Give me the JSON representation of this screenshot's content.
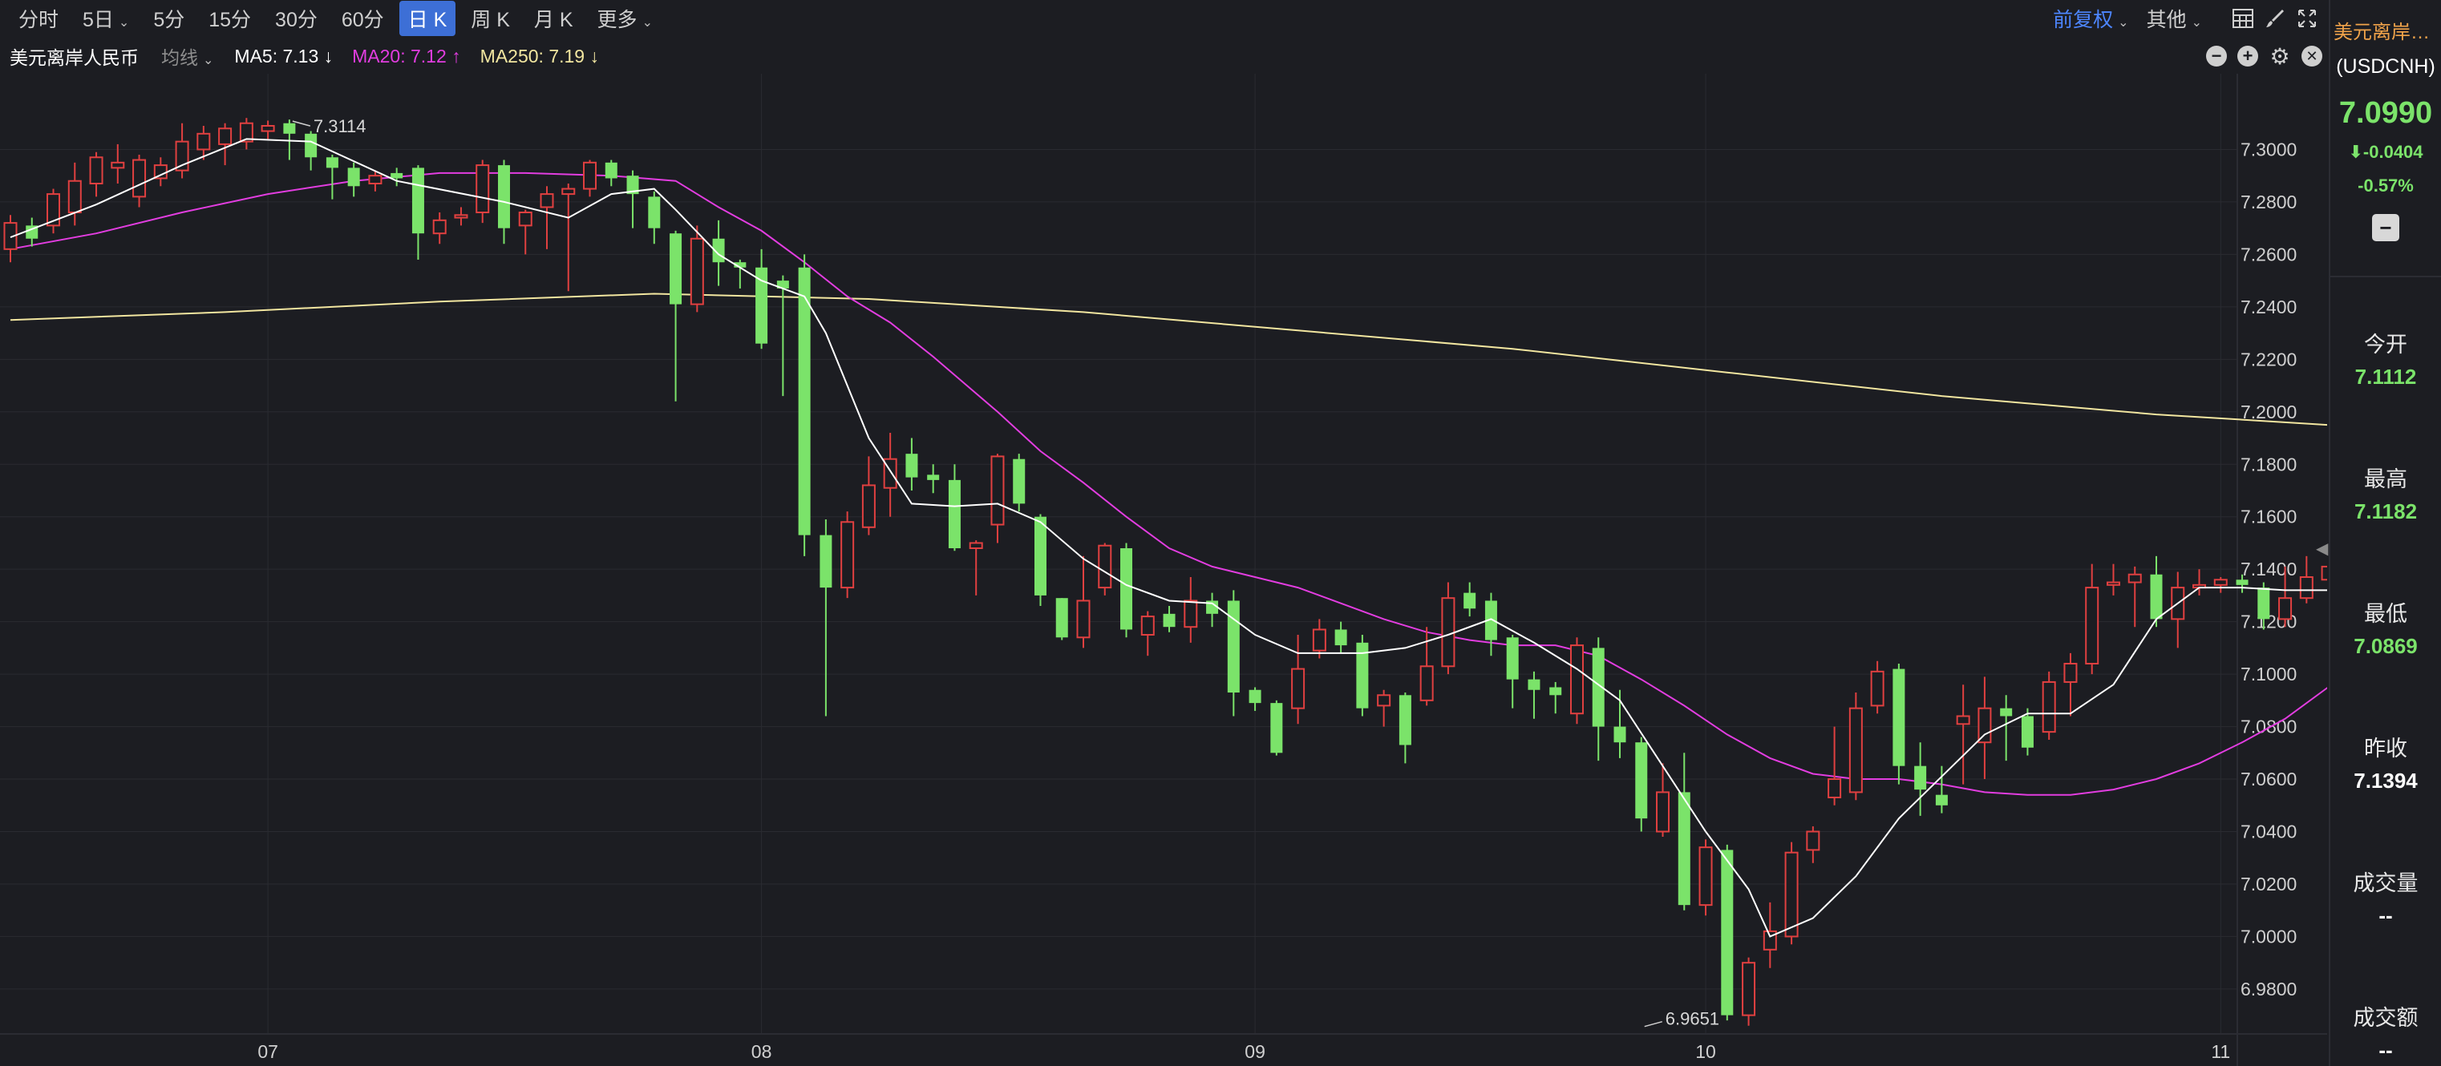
{
  "periods": [
    {
      "label": "分时",
      "active": false
    },
    {
      "label": "5日",
      "active": false,
      "caret": true
    },
    {
      "label": "5分",
      "active": false
    },
    {
      "label": "15分",
      "active": false
    },
    {
      "label": "30分",
      "active": false
    },
    {
      "label": "60分",
      "active": false
    },
    {
      "label": "日 K",
      "active": true
    },
    {
      "label": "周 K",
      "active": false
    },
    {
      "label": "月 K",
      "active": false
    },
    {
      "label": "更多",
      "active": false,
      "caret": true
    }
  ],
  "toolbar": {
    "fq_label": "前复权",
    "other_label": "其他"
  },
  "indicator": {
    "title": "美元离岸人民币",
    "ma_type": "均线",
    "ma5": "MA5: 7.13 ↓",
    "ma20": "MA20: 7.12 ↑",
    "ma250": "MA250: 7.19 ↓"
  },
  "colors": {
    "up": "#e04040",
    "down": "#7be36a",
    "ma5": "#ffffff",
    "ma20": "#e23de0",
    "ma250": "#f2e6a0",
    "grid": "#2a2b31",
    "axis_text": "#d0d0d0"
  },
  "chart_data": {
    "type": "candlestick",
    "ylim": [
      6.965,
      7.3145
    ],
    "yticks": [
      "7.3000",
      "7.2800",
      "7.2600",
      "7.2400",
      "7.2200",
      "7.2000",
      "7.1800",
      "7.1600",
      "7.1400",
      "7.1200",
      "7.1000",
      "7.0800",
      "7.0600",
      "7.0400",
      "7.0200",
      "7.0000",
      "6.9800"
    ],
    "xticks": [
      {
        "label": "07",
        "index": 12
      },
      {
        "label": "08",
        "index": 35
      },
      {
        "label": "09",
        "index": 58
      },
      {
        "label": "10",
        "index": 79
      },
      {
        "label": "11",
        "index": 103
      }
    ],
    "annotations": [
      {
        "label": "7.3114",
        "index": 13,
        "value": 7.3114,
        "side": "right"
      },
      {
        "label": "6.9651",
        "index": 76,
        "value": 6.9651,
        "side": "right"
      }
    ],
    "candles": [
      [
        7.262,
        7.272,
        7.257,
        7.275
      ],
      [
        7.271,
        7.266,
        7.263,
        7.274
      ],
      [
        7.271,
        7.283,
        7.268,
        7.285
      ],
      [
        7.276,
        7.288,
        7.271,
        7.295
      ],
      [
        7.287,
        7.297,
        7.282,
        7.299
      ],
      [
        7.293,
        7.295,
        7.287,
        7.302
      ],
      [
        7.282,
        7.296,
        7.278,
        7.298
      ],
      [
        7.289,
        7.294,
        7.286,
        7.297
      ],
      [
        7.292,
        7.303,
        7.289,
        7.31
      ],
      [
        7.3,
        7.306,
        7.296,
        7.309
      ],
      [
        7.302,
        7.308,
        7.294,
        7.31
      ],
      [
        7.303,
        7.31,
        7.3,
        7.312
      ],
      [
        7.307,
        7.309,
        7.304,
        7.311
      ],
      [
        7.31,
        7.306,
        7.296,
        7.3114
      ],
      [
        7.306,
        7.297,
        7.292,
        7.307
      ],
      [
        7.297,
        7.293,
        7.281,
        7.298
      ],
      [
        7.293,
        7.286,
        7.282,
        7.295
      ],
      [
        7.287,
        7.29,
        7.284,
        7.292
      ],
      [
        7.291,
        7.289,
        7.286,
        7.293
      ],
      [
        7.293,
        7.268,
        7.258,
        7.294
      ],
      [
        7.268,
        7.273,
        7.264,
        7.276
      ],
      [
        7.274,
        7.275,
        7.271,
        7.278
      ],
      [
        7.276,
        7.294,
        7.272,
        7.296
      ],
      [
        7.294,
        7.27,
        7.264,
        7.296
      ],
      [
        7.271,
        7.276,
        7.26,
        7.277
      ],
      [
        7.278,
        7.283,
        7.262,
        7.286
      ],
      [
        7.283,
        7.285,
        7.246,
        7.287
      ],
      [
        7.285,
        7.295,
        7.282,
        7.296
      ],
      [
        7.295,
        7.289,
        7.286,
        7.296
      ],
      [
        7.29,
        7.283,
        7.27,
        7.292
      ],
      [
        7.282,
        7.27,
        7.264,
        7.284
      ],
      [
        7.268,
        7.241,
        7.204,
        7.269
      ],
      [
        7.241,
        7.266,
        7.238,
        7.271
      ],
      [
        7.266,
        7.257,
        7.248,
        7.273
      ],
      [
        7.257,
        7.255,
        7.247,
        7.258
      ],
      [
        7.255,
        7.226,
        7.224,
        7.262
      ],
      [
        7.25,
        7.247,
        7.206,
        7.252
      ],
      [
        7.255,
        7.153,
        7.145,
        7.26
      ],
      [
        7.153,
        7.133,
        7.084,
        7.159
      ],
      [
        7.133,
        7.158,
        7.129,
        7.162
      ],
      [
        7.156,
        7.172,
        7.153,
        7.183
      ],
      [
        7.171,
        7.182,
        7.16,
        7.192
      ],
      [
        7.184,
        7.175,
        7.17,
        7.19
      ],
      [
        7.176,
        7.174,
        7.169,
        7.18
      ],
      [
        7.174,
        7.148,
        7.147,
        7.18
      ],
      [
        7.148,
        7.15,
        7.13,
        7.151
      ],
      [
        7.157,
        7.183,
        7.15,
        7.184
      ],
      [
        7.182,
        7.165,
        7.162,
        7.184
      ],
      [
        7.16,
        7.13,
        7.126,
        7.161
      ],
      [
        7.129,
        7.114,
        7.113,
        7.129
      ],
      [
        7.114,
        7.128,
        7.11,
        7.145
      ],
      [
        7.133,
        7.149,
        7.13,
        7.15
      ],
      [
        7.148,
        7.117,
        7.114,
        7.15
      ],
      [
        7.115,
        7.122,
        7.107,
        7.124
      ],
      [
        7.123,
        7.118,
        7.116,
        7.126
      ],
      [
        7.118,
        7.128,
        7.112,
        7.137
      ],
      [
        7.128,
        7.123,
        7.118,
        7.131
      ],
      [
        7.128,
        7.093,
        7.084,
        7.132
      ],
      [
        7.094,
        7.089,
        7.086,
        7.095
      ],
      [
        7.089,
        7.07,
        7.069,
        7.09
      ],
      [
        7.087,
        7.102,
        7.081,
        7.115
      ],
      [
        7.109,
        7.117,
        7.106,
        7.121
      ],
      [
        7.117,
        7.111,
        7.108,
        7.12
      ],
      [
        7.112,
        7.087,
        7.084,
        7.115
      ],
      [
        7.088,
        7.092,
        7.08,
        7.094
      ],
      [
        7.092,
        7.073,
        7.066,
        7.093
      ],
      [
        7.09,
        7.103,
        7.088,
        7.118
      ],
      [
        7.103,
        7.129,
        7.1,
        7.135
      ],
      [
        7.131,
        7.125,
        7.122,
        7.135
      ],
      [
        7.128,
        7.113,
        7.107,
        7.131
      ],
      [
        7.114,
        7.098,
        7.087,
        7.115
      ],
      [
        7.098,
        7.094,
        7.083,
        7.101
      ],
      [
        7.095,
        7.092,
        7.085,
        7.097
      ],
      [
        7.085,
        7.111,
        7.081,
        7.114
      ],
      [
        7.11,
        7.08,
        7.067,
        7.114
      ],
      [
        7.08,
        7.074,
        7.068,
        7.094
      ],
      [
        7.074,
        7.045,
        7.04,
        7.076
      ],
      [
        7.04,
        7.055,
        7.038,
        7.066
      ],
      [
        7.055,
        7.012,
        7.01,
        7.07
      ],
      [
        7.012,
        7.034,
        7.008,
        7.037
      ],
      [
        7.033,
        6.97,
        6.968,
        7.035
      ],
      [
        6.97,
        6.99,
        6.966,
        6.992
      ],
      [
        6.995,
        7.002,
        6.988,
        7.013
      ],
      [
        7.0,
        7.032,
        6.997,
        7.036
      ],
      [
        7.033,
        7.04,
        7.028,
        7.042
      ],
      [
        7.053,
        7.06,
        7.05,
        7.08
      ],
      [
        7.055,
        7.087,
        7.052,
        7.093
      ],
      [
        7.088,
        7.101,
        7.085,
        7.105
      ],
      [
        7.102,
        7.065,
        7.058,
        7.104
      ],
      [
        7.065,
        7.056,
        7.046,
        7.074
      ],
      [
        7.054,
        7.05,
        7.047,
        7.065
      ],
      [
        7.081,
        7.084,
        7.058,
        7.096
      ],
      [
        7.074,
        7.087,
        7.06,
        7.099
      ],
      [
        7.087,
        7.084,
        7.067,
        7.092
      ],
      [
        7.084,
        7.072,
        7.069,
        7.087
      ],
      [
        7.078,
        7.097,
        7.075,
        7.101
      ],
      [
        7.097,
        7.104,
        7.084,
        7.108
      ],
      [
        7.104,
        7.133,
        7.1,
        7.142
      ],
      [
        7.134,
        7.135,
        7.13,
        7.142
      ],
      [
        7.135,
        7.138,
        7.118,
        7.141
      ],
      [
        7.138,
        7.121,
        7.118,
        7.145
      ],
      [
        7.121,
        7.133,
        7.11,
        7.139
      ],
      [
        7.133,
        7.134,
        7.13,
        7.14
      ],
      [
        7.134,
        7.136,
        7.131,
        7.137
      ],
      [
        7.136,
        7.134,
        7.131,
        7.138
      ],
      [
        7.133,
        7.121,
        7.117,
        7.135
      ],
      [
        7.121,
        7.129,
        7.118,
        7.141
      ],
      [
        7.129,
        7.137,
        7.127,
        7.145
      ],
      [
        7.136,
        7.141,
        7.134,
        7.163
      ],
      [
        7.141,
        7.142,
        7.136,
        7.149
      ],
      [
        7.142,
        7.126,
        7.124,
        7.145
      ],
      [
        7.124,
        7.138,
        7.115,
        7.141
      ],
      [
        7.11,
        7.1,
        7.087,
        7.1182
      ]
    ],
    "ma5": [
      [
        0,
        7.2665
      ],
      [
        4,
        7.279
      ],
      [
        8,
        7.294
      ],
      [
        11,
        7.304
      ],
      [
        14,
        7.303
      ],
      [
        18,
        7.288
      ],
      [
        23,
        7.28
      ],
      [
        26,
        7.274
      ],
      [
        28,
        7.283
      ],
      [
        30,
        7.285
      ],
      [
        31,
        7.277
      ],
      [
        33,
        7.26
      ],
      [
        35,
        7.25
      ],
      [
        37,
        7.244
      ],
      [
        38,
        7.23
      ],
      [
        40,
        7.19
      ],
      [
        42,
        7.165
      ],
      [
        44,
        7.164
      ],
      [
        46,
        7.165
      ],
      [
        48,
        7.158
      ],
      [
        50,
        7.144
      ],
      [
        52,
        7.134
      ],
      [
        54,
        7.128
      ],
      [
        56,
        7.127
      ],
      [
        58,
        7.115
      ],
      [
        60,
        7.108
      ],
      [
        63,
        7.108
      ],
      [
        65,
        7.11
      ],
      [
        67,
        7.115
      ],
      [
        69,
        7.121
      ],
      [
        71,
        7.112
      ],
      [
        73,
        7.102
      ],
      [
        75,
        7.09
      ],
      [
        77,
        7.065
      ],
      [
        79,
        7.04
      ],
      [
        81,
        7.018
      ],
      [
        82,
        7.0
      ],
      [
        84,
        7.007
      ],
      [
        86,
        7.023
      ],
      [
        88,
        7.045
      ],
      [
        90,
        7.061
      ],
      [
        92,
        7.077
      ],
      [
        94,
        7.085
      ],
      [
        96,
        7.085
      ],
      [
        98,
        7.096
      ],
      [
        100,
        7.121
      ],
      [
        102,
        7.133
      ],
      [
        104,
        7.133
      ],
      [
        106,
        7.132
      ],
      [
        108,
        7.132
      ],
      [
        110,
        7.132
      ],
      [
        112,
        7.134
      ],
      [
        114,
        7.133
      ],
      [
        116,
        7.125
      ]
    ],
    "ma20": [
      [
        0,
        7.262
      ],
      [
        4,
        7.268
      ],
      [
        8,
        7.276
      ],
      [
        12,
        7.283
      ],
      [
        16,
        7.288
      ],
      [
        20,
        7.291
      ],
      [
        24,
        7.291
      ],
      [
        28,
        7.29
      ],
      [
        31,
        7.288
      ],
      [
        33,
        7.278
      ],
      [
        35,
        7.269
      ],
      [
        37,
        7.257
      ],
      [
        39,
        7.244
      ],
      [
        41,
        7.234
      ],
      [
        43,
        7.221
      ],
      [
        46,
        7.2
      ],
      [
        48,
        7.185
      ],
      [
        50,
        7.173
      ],
      [
        52,
        7.16
      ],
      [
        54,
        7.148
      ],
      [
        56,
        7.141
      ],
      [
        58,
        7.137
      ],
      [
        60,
        7.133
      ],
      [
        62,
        7.127
      ],
      [
        64,
        7.121
      ],
      [
        66,
        7.116
      ],
      [
        68,
        7.113
      ],
      [
        70,
        7.111
      ],
      [
        72,
        7.111
      ],
      [
        74,
        7.107
      ],
      [
        76,
        7.098
      ],
      [
        78,
        7.088
      ],
      [
        80,
        7.077
      ],
      [
        82,
        7.068
      ],
      [
        84,
        7.062
      ],
      [
        86,
        7.06
      ],
      [
        88,
        7.06
      ],
      [
        90,
        7.058
      ],
      [
        92,
        7.055
      ],
      [
        94,
        7.054
      ],
      [
        96,
        7.054
      ],
      [
        98,
        7.056
      ],
      [
        100,
        7.06
      ],
      [
        102,
        7.066
      ],
      [
        104,
        7.074
      ],
      [
        106,
        7.083
      ],
      [
        108,
        7.095
      ],
      [
        110,
        7.106
      ],
      [
        112,
        7.113
      ],
      [
        114,
        7.117
      ],
      [
        116,
        7.12
      ]
    ],
    "ma250": [
      [
        0,
        7.235
      ],
      [
        10,
        7.238
      ],
      [
        20,
        7.242
      ],
      [
        30,
        7.245
      ],
      [
        40,
        7.243
      ],
      [
        50,
        7.238
      ],
      [
        60,
        7.231
      ],
      [
        70,
        7.224
      ],
      [
        80,
        7.215
      ],
      [
        90,
        7.206
      ],
      [
        100,
        7.199
      ],
      [
        110,
        7.194
      ],
      [
        116,
        7.192
      ]
    ]
  },
  "side": {
    "name": "美元离岸人...",
    "code": "(USDCNH)",
    "price": "7.0990",
    "change": "-0.0404",
    "change_arrow": "⬇",
    "pct": "-0.57%",
    "collapse": "−",
    "stats": [
      {
        "label": "今开",
        "value": "7.1112",
        "white": false,
        "top": 408
      },
      {
        "label": "最高",
        "value": "7.1182",
        "white": false,
        "top": 576
      },
      {
        "label": "最低",
        "value": "7.0869",
        "white": false,
        "top": 744
      },
      {
        "label": "昨收",
        "value": "7.1394",
        "white": true,
        "top": 912
      },
      {
        "label": "成交量",
        "value": "--",
        "white": true,
        "top": 1080
      },
      {
        "label": "成交额",
        "value": "--",
        "white": true,
        "top": 1248
      }
    ]
  }
}
